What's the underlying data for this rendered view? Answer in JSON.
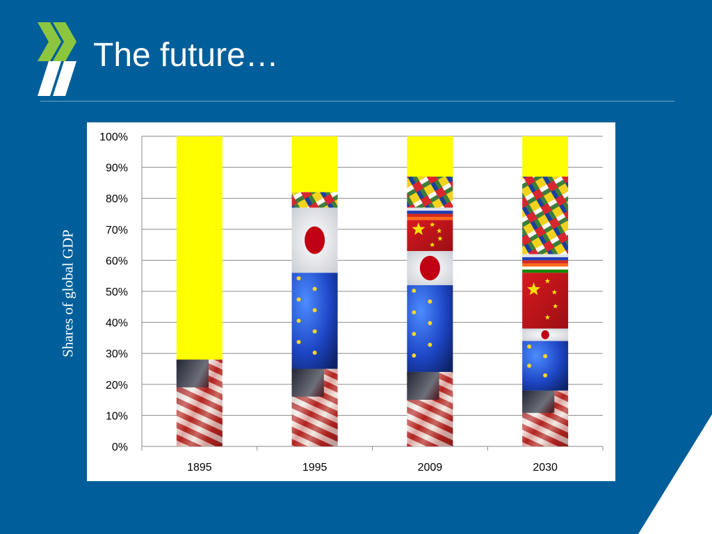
{
  "slide": {
    "title": "The future…",
    "side_label": "Shares of global GDP",
    "logo_icon": "double-chevron-logo-icon"
  },
  "colors": {
    "background": "#005f9a",
    "rule": "#6fa6cf",
    "logo": "#8cc63f",
    "rest_of_world": "#ffff00",
    "us_flag": "#8b1a1a",
    "eu_flag": "#1f4fd0",
    "japan_flag": "#c00012",
    "china_flag": "#c8161d",
    "india_flag": "#ff6a1a",
    "russia_flag": "#dfe3ea",
    "other_flags": "#4d7fd0"
  },
  "chart_data": {
    "type": "bar",
    "stacked": true,
    "categories": [
      "1895",
      "1995",
      "2009",
      "2030"
    ],
    "ylim": [
      0,
      100
    ],
    "yticks": [
      "0%",
      "10%",
      "20%",
      "30%",
      "40%",
      "50%",
      "60%",
      "70%",
      "80%",
      "90%",
      "100%"
    ],
    "grid": true,
    "series": [
      {
        "key": "united_states",
        "icon": "us-flag-icon",
        "values": [
          28,
          25,
          24,
          18
        ]
      },
      {
        "key": "european_union",
        "icon": "eu-flag-icon",
        "values": [
          0,
          31,
          28,
          16
        ]
      },
      {
        "key": "japan",
        "icon": "japan-flag-icon",
        "values": [
          0,
          21,
          11,
          4
        ]
      },
      {
        "key": "china",
        "icon": "china-flag-icon",
        "values": [
          0,
          0,
          10,
          18
        ]
      },
      {
        "key": "india",
        "icon": "india-flag-icon",
        "values": [
          0,
          0,
          1,
          3
        ]
      },
      {
        "key": "russia",
        "icon": "russia-flag-icon",
        "values": [
          0,
          0,
          3,
          3
        ]
      },
      {
        "key": "other_economies",
        "icon": "other-flags-icon",
        "values": [
          0,
          5,
          10,
          25
        ]
      },
      {
        "key": "rest_of_world",
        "icon": "rest-of-world-block",
        "values": [
          72,
          18,
          13,
          13
        ]
      }
    ]
  }
}
